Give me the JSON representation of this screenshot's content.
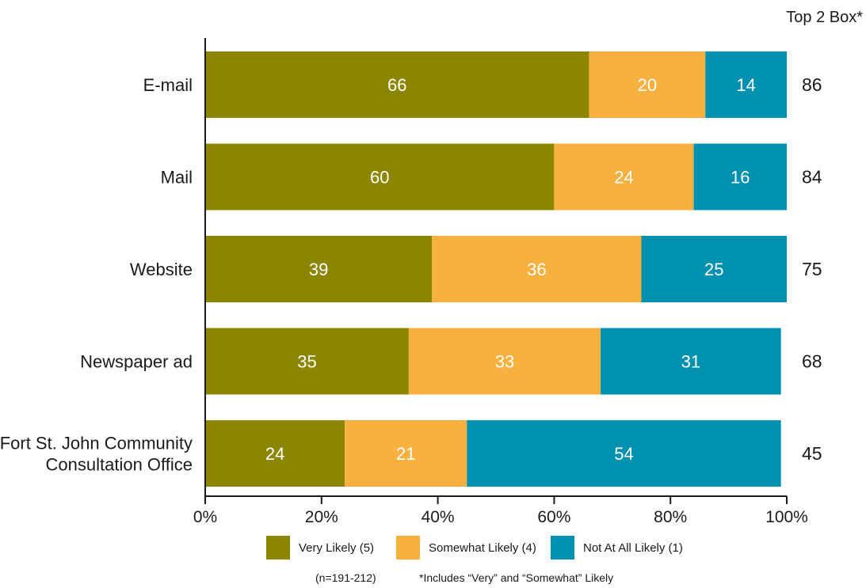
{
  "chart_data": {
    "type": "bar",
    "orientation": "horizontal",
    "stacked": true,
    "categories": [
      [
        "E-mail"
      ],
      [
        "Mail"
      ],
      [
        "Website"
      ],
      [
        "Newspaper ad"
      ],
      [
        "Fort St. John Community",
        "Consultation Office"
      ]
    ],
    "series": [
      {
        "name": "Very Likely (5)",
        "color": "#8b8500",
        "values": [
          66,
          60,
          39,
          35,
          24
        ]
      },
      {
        "name": "Somewhat Likely (4)",
        "color": "#f8b03f",
        "values": [
          20,
          24,
          36,
          33,
          21
        ]
      },
      {
        "name": "Not At All Likely (1)",
        "color": "#0090b0",
        "values": [
          14,
          16,
          25,
          31,
          54
        ]
      }
    ],
    "top2_header": "Top 2 Box*",
    "top2_values": [
      86,
      84,
      75,
      68,
      45
    ],
    "xlim": [
      0,
      100
    ],
    "xticks": [
      "0%",
      "20%",
      "40%",
      "60%",
      "80%",
      "100%"
    ],
    "grid": false,
    "legend_position": "bottom",
    "notes": [
      "(n=191-212)",
      "*Includes “Very” and “Somewhat” Likely"
    ]
  }
}
